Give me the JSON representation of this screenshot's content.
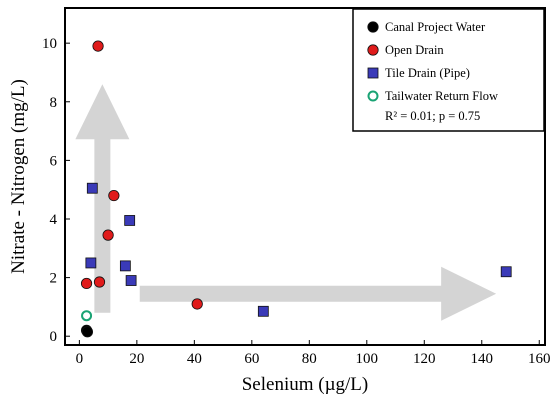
{
  "chart_data": {
    "type": "scatter",
    "xlabel": "Selenium (µg/L)",
    "ylabel": "Nitrate - Nitrogen (mg/L)",
    "xlim": [
      -5,
      162
    ],
    "ylim": [
      -0.3,
      11.2
    ],
    "xticks": [
      0,
      20,
      40,
      60,
      80,
      100,
      120,
      140,
      160
    ],
    "yticks": [
      0,
      2,
      4,
      6,
      8,
      10
    ],
    "legend_position": "top-right",
    "annotation": "R² = 0.01; p = 0.75",
    "series": [
      {
        "name": "Canal Project Water",
        "marker": "filled-circle",
        "color": "#000000",
        "points": [
          [
            2.5,
            0.2
          ],
          [
            2.8,
            0.15
          ]
        ]
      },
      {
        "name": "Open Drain",
        "marker": "filled-circle",
        "color": "#e01b1b",
        "points": [
          [
            6.5,
            9.9
          ],
          [
            12,
            4.8
          ],
          [
            10,
            3.45
          ],
          [
            2.5,
            1.8
          ],
          [
            7,
            1.85
          ],
          [
            41,
            1.1
          ]
        ]
      },
      {
        "name": "Tile Drain (Pipe)",
        "marker": "square",
        "color": "#3a3ab8",
        "points": [
          [
            4.5,
            5.05
          ],
          [
            17.5,
            3.95
          ],
          [
            4,
            2.5
          ],
          [
            16,
            2.4
          ],
          [
            18,
            1.9
          ],
          [
            64,
            0.85
          ],
          [
            148.5,
            2.2
          ]
        ]
      },
      {
        "name": "Tailwater Return Flow",
        "marker": "open-circle",
        "color": "#1aa374",
        "points": [
          [
            2.5,
            0.7
          ]
        ]
      }
    ],
    "arrows": [
      {
        "direction": "up",
        "from": [
          8,
          0.8
        ],
        "to": [
          8,
          8.6
        ]
      },
      {
        "direction": "right",
        "from": [
          21,
          1.45
        ],
        "to": [
          145,
          1.45
        ]
      }
    ]
  }
}
